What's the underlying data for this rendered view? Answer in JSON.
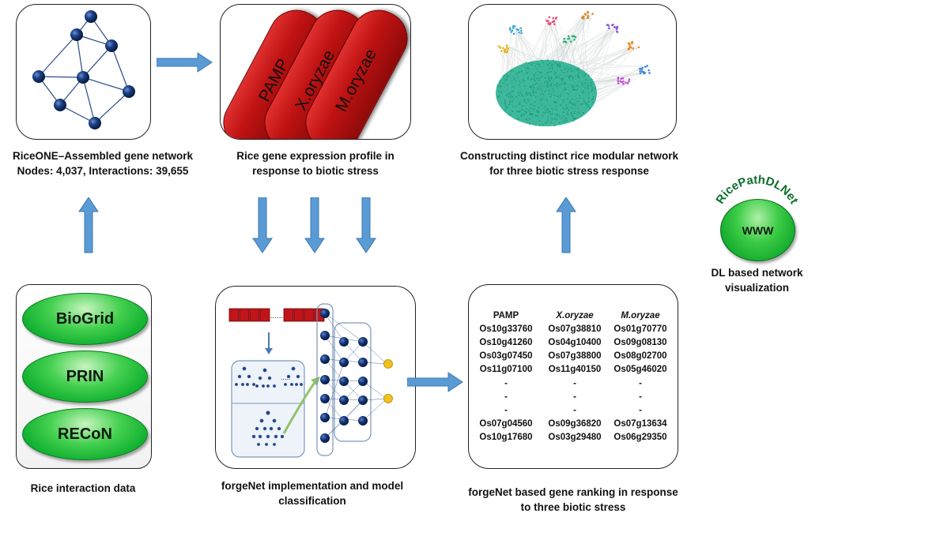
{
  "panels": {
    "network": {
      "caption_line1": "RiceONE–Assembled gene network",
      "caption_line2": "Nodes: 4,037,  Interactions: 39,655"
    },
    "expression": {
      "bars": [
        "PAMP",
        "X.oryzae",
        "M.oryzae"
      ],
      "caption_line1": "Rice gene expression profile in",
      "caption_line2": "response to biotic stress"
    },
    "modular": {
      "caption_line1": "Constructing distinct rice modular network",
      "caption_line2": "for three biotic stress response"
    },
    "interaction": {
      "databases": [
        "BioGrid",
        "PRIN",
        "RECoN"
      ],
      "caption_line1": "Rice interaction data"
    },
    "forgenet": {
      "dots": "......",
      "caption_line1": "forgeNet implementation and model",
      "caption_line2": "classification"
    },
    "ranking": {
      "headers": [
        "PAMP",
        "X.oryzae",
        "M.oryzae"
      ],
      "rows": [
        [
          "Os10g33760",
          "Os07g38810",
          "Os01g70770"
        ],
        [
          "Os10g41260",
          "Os04g10400",
          "Os09g08130"
        ],
        [
          "Os03g07450",
          "Os07g38800",
          "Os08g02700"
        ],
        [
          "Os11g07100",
          "Os11g40150",
          "Os05g46020"
        ],
        [
          "-",
          "-",
          "-"
        ],
        [
          "-",
          "-",
          "-"
        ],
        [
          "-",
          "-",
          "-"
        ],
        [
          "Os07g04560",
          "Os09g36820",
          "Os07g13634"
        ],
        [
          "Os10g17680",
          "Os03g29480",
          "Os06g29350"
        ]
      ],
      "caption_line1": "forgeNet based gene ranking in response",
      "caption_line2": "to three biotic stress"
    },
    "web": {
      "arc_label": "RicePathDLNet",
      "button_label": "WWW",
      "caption_line1": "DL based network",
      "caption_line2": "visualization"
    }
  },
  "colors": {
    "arrow": "#5b9bd5",
    "pill_green": "#10b030",
    "red_bar": "#c01212",
    "node_navy": "#0d2a5c"
  }
}
